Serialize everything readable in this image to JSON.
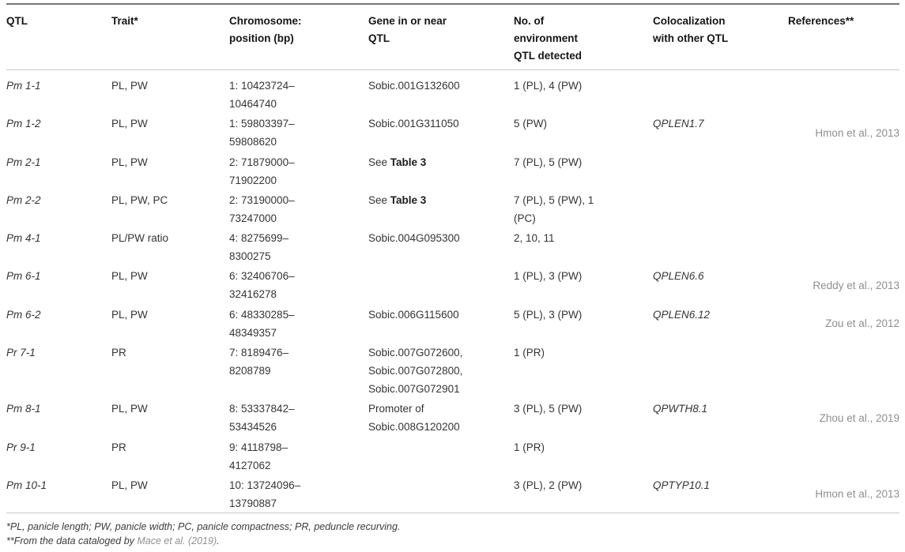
{
  "table": {
    "headers": [
      {
        "label": "QTL"
      },
      {
        "label": "Trait*"
      },
      {
        "label": "Chromosome:\nposition (bp)"
      },
      {
        "label": "Gene in or near\nQTL"
      },
      {
        "label": "No. of\nenvironment\nQTL detected"
      },
      {
        "label": "Colocalization\nwith other QTL"
      },
      {
        "label": "References**"
      }
    ],
    "rows": [
      {
        "qtl": "Pm 1-1",
        "trait": "PL, PW",
        "pos": "1: 10423724–\n10464740",
        "gene": "Sobic.001G132600",
        "gene_bold": "",
        "env": "1 (PL), 4 (PW)",
        "coloc": "",
        "ref": ""
      },
      {
        "qtl": "Pm 1-2",
        "trait": "PL, PW",
        "pos": "1: 59803397–\n59808620",
        "gene": "Sobic.001G311050",
        "gene_bold": "",
        "env": "5 (PW)",
        "coloc": "QPLEN1.7",
        "ref": "Hmon et al., 2013"
      },
      {
        "qtl": "Pm 2-1",
        "trait": "PL, PW",
        "pos": "2: 71879000–\n71902200",
        "gene": "See ",
        "gene_bold": "Table 3",
        "env": "7 (PL), 5 (PW)",
        "coloc": "",
        "ref": ""
      },
      {
        "qtl": "Pm 2-2",
        "trait": "PL, PW, PC",
        "pos": "2: 73190000–\n73247000",
        "gene": "See ",
        "gene_bold": "Table 3",
        "env": "7 (PL), 5 (PW), 1\n(PC)",
        "coloc": "",
        "ref": ""
      },
      {
        "qtl": "Pm 4-1",
        "trait": "PL/PW ratio",
        "pos": "4: 8275699–\n8300275",
        "gene": "Sobic.004G095300",
        "gene_bold": "",
        "env": "2, 10, 11",
        "coloc": "",
        "ref": ""
      },
      {
        "qtl": "Pm 6-1",
        "trait": "PL, PW",
        "pos": "6: 32406706–\n32416278",
        "gene": "",
        "gene_bold": "",
        "env": "1 (PL), 3 (PW)",
        "coloc": "QPLEN6.6",
        "ref": "Reddy et al., 2013"
      },
      {
        "qtl": "Pm 6-2",
        "trait": "PL, PW",
        "pos": "6: 48330285–\n48349357",
        "gene": "Sobic.006G115600",
        "gene_bold": "",
        "env": "5 (PL), 3 (PW)",
        "coloc": "QPLEN6.12",
        "ref": "Zou et al., 2012"
      },
      {
        "qtl": "Pr 7-1",
        "trait": "PR",
        "pos": "7: 8189476–\n8208789",
        "gene": "Sobic.007G072600,\nSobic.007G072800,\nSobic.007G072901",
        "gene_bold": "",
        "env": "1 (PR)",
        "coloc": "",
        "ref": ""
      },
      {
        "qtl": "Pm 8-1",
        "trait": "PL, PW",
        "pos": "8: 53337842–\n53434526",
        "gene": "Promoter of\nSobic.008G120200",
        "gene_bold": "",
        "env": "3 (PL), 5 (PW)",
        "coloc": "QPWTH8.1",
        "ref": "Zhou et al., 2019"
      },
      {
        "qtl": "Pr 9-1",
        "trait": "PR",
        "pos": "9: 4118798–\n4127062",
        "gene": "",
        "gene_bold": "",
        "env": "1 (PR)",
        "coloc": "",
        "ref": ""
      },
      {
        "qtl": "Pm 10-1",
        "trait": "PL, PW",
        "pos": "10: 13724096–\n13790887",
        "gene": "",
        "gene_bold": "",
        "env": "3 (PL), 2 (PW)",
        "coloc": "QPTYP10.1",
        "ref": "Hmon et al., 2013"
      }
    ]
  },
  "footnotes": {
    "line1": "*PL, panicle length; PW, panicle width; PC, panicle compactness; PR, peduncle recurving.",
    "line2_prefix": "**From the data cataloged by ",
    "line2_link": "Mace et al. (2019)",
    "line2_suffix": "."
  },
  "colors": {
    "body_text": "#343434",
    "header_text": "#151515",
    "reference_link": "#8f8f8f",
    "rule_dark": "#757575",
    "rule_light": "#c9c9c9"
  }
}
